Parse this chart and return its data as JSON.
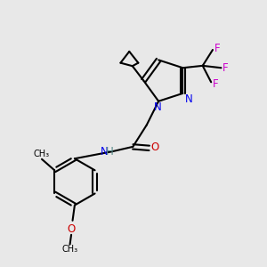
{
  "background_color": "#e8e8e8",
  "bond_color": "#000000",
  "N_color": "#0000ee",
  "O_color": "#cc0000",
  "F_color": "#cc00cc",
  "H_color": "#558888",
  "figsize": [
    3.0,
    3.0
  ],
  "dpi": 100,
  "xlim": [
    0,
    10
  ],
  "ylim": [
    0,
    10
  ]
}
